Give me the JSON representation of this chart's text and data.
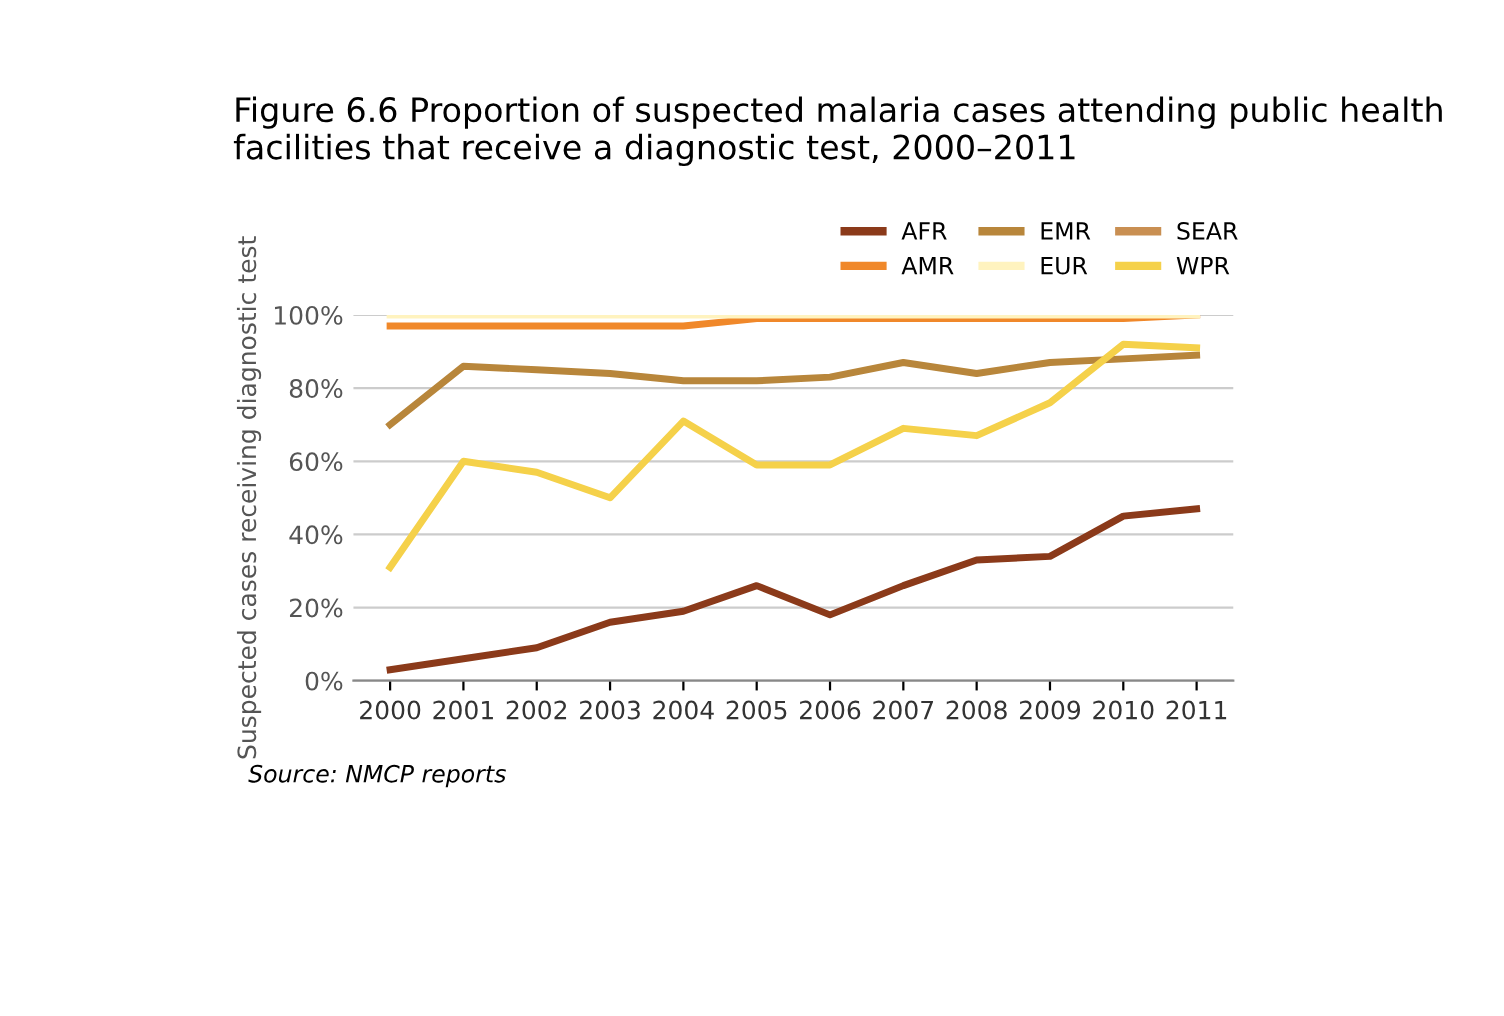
{
  "chart_data": {
    "type": "line",
    "title": "Figure 6.6 Proportion of suspected malaria cases attending public health facilities that receive a diagnostic test, 2000–2011",
    "ylabel": "Suspected cases receiving diagnostic test",
    "categories": [
      "2000",
      "2001",
      "2002",
      "2003",
      "2004",
      "2005",
      "2006",
      "2007",
      "2008",
      "2009",
      "2010",
      "2011"
    ],
    "series": [
      {
        "name": "AFR",
        "color": "#8b3a1a",
        "values": [
          3,
          6,
          9,
          16,
          19,
          26,
          18,
          26,
          33,
          34,
          45,
          47
        ]
      },
      {
        "name": "AMR",
        "color": "#f0882a",
        "values": [
          97,
          97,
          97,
          97,
          97,
          99,
          99,
          99,
          99,
          99,
          99,
          100
        ]
      },
      {
        "name": "EMR",
        "color": "#b8863b",
        "values": [
          70,
          86,
          85,
          84,
          82,
          82,
          83,
          87,
          84,
          87,
          88,
          89
        ]
      },
      {
        "name": "EUR",
        "color": "#fff3bf",
        "values": [
          100,
          100,
          100,
          100,
          100,
          100,
          100,
          100,
          100,
          100,
          100,
          100
        ]
      },
      {
        "name": "SEAR",
        "color": "#c98f52",
        "values": [
          null,
          null,
          null,
          null,
          null,
          null,
          null,
          null,
          null,
          null,
          null,
          null
        ]
      },
      {
        "name": "WPR",
        "color": "#f5d14a",
        "values": [
          31,
          60,
          57,
          50,
          71,
          59,
          59,
          69,
          67,
          76,
          92,
          91
        ]
      }
    ],
    "ylim": [
      0,
      100
    ],
    "yticks": [
      {
        "value": 0,
        "label": "0%"
      },
      {
        "value": 20,
        "label": "20%"
      },
      {
        "value": 40,
        "label": "40%"
      },
      {
        "value": 60,
        "label": "60%"
      },
      {
        "value": 80,
        "label": "80%"
      },
      {
        "value": 100,
        "label": "100%"
      }
    ],
    "grid": "y",
    "legend": "top right",
    "marker": "none",
    "line_style": "solid",
    "annotations": [
      "Source: NMCP reports"
    ]
  }
}
